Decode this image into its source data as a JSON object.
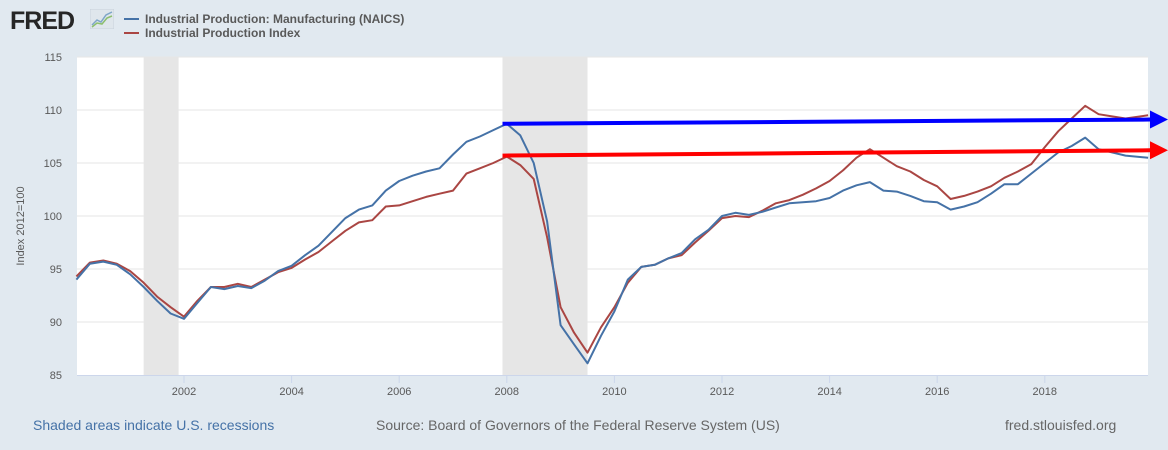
{
  "header": {
    "logo_text": "FRED",
    "logo_icon": "line-chart-icon"
  },
  "footer": {
    "recession_note": "Shaded areas indicate U.S. recessions",
    "source": "Source: Board of Governors of the Federal Reserve System (US)",
    "site": "fred.stlouisfed.org"
  },
  "colors": {
    "background": "#e1e9f0",
    "manufacturing": "#4572a7",
    "ip_index": "#aa4643",
    "recession_shade": "#e6e6e6",
    "arrow_blue": "#0000ff",
    "arrow_red": "#ff0000"
  },
  "chart_data": {
    "type": "line",
    "title": "",
    "xlabel": "",
    "ylabel": "Index 2012=100",
    "xlim": [
      2000.0,
      2020.0
    ],
    "ylim": [
      85,
      115
    ],
    "yticks": [
      85,
      90,
      95,
      100,
      105,
      110,
      115
    ],
    "xticks": [
      2002,
      2004,
      2006,
      2008,
      2010,
      2012,
      2014,
      2016,
      2018
    ],
    "grid": true,
    "legend_position": "top-left",
    "recessions": [
      [
        2001.25,
        2001.9
      ],
      [
        2007.92,
        2009.5
      ]
    ],
    "x": [
      2000.0,
      2000.25,
      2000.5,
      2000.75,
      2001.0,
      2001.25,
      2001.5,
      2001.75,
      2002.0,
      2002.25,
      2002.5,
      2002.75,
      2003.0,
      2003.25,
      2003.5,
      2003.75,
      2004.0,
      2004.25,
      2004.5,
      2004.75,
      2005.0,
      2005.25,
      2005.5,
      2005.75,
      2006.0,
      2006.25,
      2006.5,
      2006.75,
      2007.0,
      2007.25,
      2007.5,
      2007.75,
      2008.0,
      2008.25,
      2008.5,
      2008.75,
      2009.0,
      2009.25,
      2009.5,
      2009.75,
      2010.0,
      2010.25,
      2010.5,
      2010.75,
      2011.0,
      2011.25,
      2011.5,
      2011.75,
      2012.0,
      2012.25,
      2012.5,
      2012.75,
      2013.0,
      2013.25,
      2013.5,
      2013.75,
      2014.0,
      2014.25,
      2014.5,
      2014.75,
      2015.0,
      2015.25,
      2015.5,
      2015.75,
      2016.0,
      2016.25,
      2016.5,
      2016.75,
      2017.0,
      2017.25,
      2017.5,
      2017.75,
      2018.0,
      2018.25,
      2018.5,
      2018.75,
      2019.0,
      2019.25,
      2019.5,
      2019.92
    ],
    "series": [
      {
        "name": "Industrial Production: Manufacturing (NAICS)",
        "values": [
          94.0,
          95.5,
          95.7,
          95.4,
          94.5,
          93.3,
          92.0,
          90.8,
          90.3,
          91.8,
          93.3,
          93.1,
          93.4,
          93.2,
          93.9,
          94.8,
          95.3,
          96.3,
          97.2,
          98.5,
          99.8,
          100.6,
          101.0,
          102.4,
          103.3,
          103.8,
          104.2,
          104.5,
          105.8,
          107.0,
          107.5,
          108.1,
          108.7,
          107.6,
          105.0,
          99.5,
          89.7,
          87.9,
          86.1,
          88.7,
          91.0,
          94.0,
          95.2,
          95.4,
          96.0,
          96.5,
          97.8,
          98.7,
          100.0,
          100.3,
          100.1,
          100.4,
          100.8,
          101.2,
          101.3,
          101.4,
          101.7,
          102.4,
          102.9,
          103.2,
          102.4,
          102.3,
          101.9,
          101.4,
          101.3,
          100.6,
          100.9,
          101.3,
          102.1,
          103.0,
          103.0,
          104.0,
          105.0,
          106.0,
          106.6,
          107.4,
          106.3,
          106.0,
          105.7,
          105.5
        ]
      },
      {
        "name": "Industrial Production Index",
        "values": [
          94.3,
          95.6,
          95.8,
          95.5,
          94.8,
          93.7,
          92.4,
          91.4,
          90.5,
          92.0,
          93.3,
          93.3,
          93.6,
          93.3,
          94.0,
          94.7,
          95.1,
          95.9,
          96.6,
          97.6,
          98.6,
          99.4,
          99.6,
          100.9,
          101.0,
          101.4,
          101.8,
          102.1,
          102.4,
          104.0,
          104.5,
          105.0,
          105.6,
          104.8,
          103.5,
          98.0,
          91.4,
          89.0,
          87.1,
          89.5,
          91.4,
          93.7,
          95.2,
          95.4,
          96.0,
          96.3,
          97.5,
          98.6,
          99.8,
          100.0,
          99.9,
          100.5,
          101.2,
          101.5,
          102.0,
          102.6,
          103.3,
          104.3,
          105.5,
          106.3,
          105.5,
          104.7,
          104.2,
          103.4,
          102.8,
          101.6,
          101.9,
          102.3,
          102.8,
          103.6,
          104.2,
          104.9,
          106.5,
          108.0,
          109.2,
          110.4,
          109.6,
          109.4,
          109.2,
          109.5
        ]
      }
    ],
    "annotations": [
      {
        "type": "arrow",
        "color": "blue",
        "from": [
          2007.92,
          108.7
        ],
        "to": [
          2020.4,
          109.1
        ]
      },
      {
        "type": "arrow",
        "color": "red",
        "from": [
          2007.92,
          105.7
        ],
        "to": [
          2020.4,
          106.2
        ]
      }
    ]
  }
}
